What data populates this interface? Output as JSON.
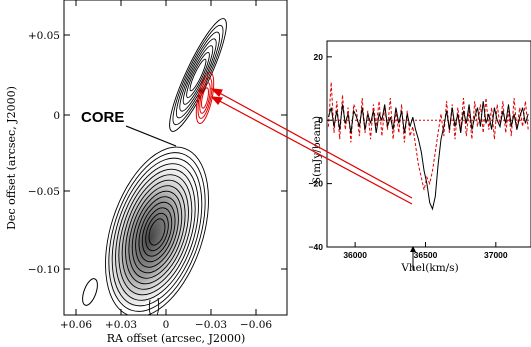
{
  "chart_data": [
    {
      "type": "contour",
      "xlabel": "RA offset (arcsec, J2000)",
      "ylabel": "Dec offset (arcsec, J2000)",
      "x_ticks": [
        "+0.06",
        "+0.03",
        "0",
        "−0.03",
        "−0.06"
      ],
      "y_ticks": [
        "+0.05",
        "0",
        "−0.05",
        "−0.10"
      ],
      "xlim": [
        0.065,
        -0.08
      ],
      "ylim": [
        -0.135,
        0.075
      ],
      "annotation": "CORE",
      "contour_color": "#000000",
      "overlay_contour_color": "#e00000"
    },
    {
      "type": "line",
      "xlabel": "Vhel(km/s)",
      "ylabel": "S(mJy/beam)",
      "x_ticks": [
        "36000",
        "36500",
        "37000"
      ],
      "y_ticks": [
        "20",
        "0",
        "−20",
        "−40"
      ],
      "xlim": [
        35800,
        37250
      ],
      "ylim": [
        -40,
        25
      ],
      "series": [
        {
          "style": "solid",
          "color": "#000000",
          "x": [
            35810,
            35830,
            35850,
            35870,
            35890,
            35910,
            35930,
            35950,
            35970,
            35990,
            36010,
            36030,
            36050,
            36070,
            36090,
            36110,
            36130,
            36150,
            36170,
            36190,
            36210,
            36230,
            36250,
            36270,
            36290,
            36310,
            36330,
            36350,
            36370,
            36390,
            36410,
            36430,
            36450,
            36470,
            36490,
            36510,
            36530,
            36550,
            36570,
            36590,
            36610,
            36630,
            36650,
            36670,
            36690,
            36710,
            36730,
            36750,
            36770,
            36790,
            36810,
            36830,
            36850,
            36870,
            36890,
            36910,
            36930,
            36950,
            36970,
            36990,
            37010,
            37030,
            37050,
            37070,
            37090,
            37110,
            37130,
            37150,
            37170,
            37190,
            37210,
            37230
          ],
          "y": [
            1,
            4,
            -2,
            3,
            -3,
            5,
            -1,
            2,
            -4,
            3,
            1,
            -2,
            4,
            -3,
            2,
            -1,
            3,
            -4,
            2,
            0,
            5,
            -2,
            1,
            -3,
            4,
            -1,
            3,
            -4,
            2,
            -2,
            1,
            -3,
            -6,
            -10,
            -16,
            -20,
            -26,
            -28,
            -24,
            -14,
            -6,
            -2,
            3,
            -3,
            4,
            -2,
            2,
            -4,
            3,
            -1,
            5,
            -3,
            1,
            4,
            -2,
            6,
            -1,
            2,
            -3,
            4,
            0,
            -2,
            3,
            -1,
            5,
            -2,
            2,
            -3,
            1,
            4,
            -1,
            2
          ]
        },
        {
          "style": "dashed",
          "color": "#e00000",
          "x": [
            35810,
            35830,
            35850,
            35870,
            35890,
            35910,
            35930,
            35950,
            35970,
            35990,
            36010,
            36030,
            36050,
            36070,
            36090,
            36110,
            36130,
            36150,
            36170,
            36190,
            36210,
            36230,
            36250,
            36270,
            36290,
            36310,
            36330,
            36350,
            36370,
            36390,
            36410,
            36430,
            36450,
            36470,
            36490,
            36510,
            36530,
            36550,
            36570,
            36590,
            36610,
            36630,
            36650,
            36670,
            36690,
            36710,
            36730,
            36750,
            36770,
            36790,
            36810,
            36830,
            36850,
            36870,
            36890,
            36910,
            36930,
            36950,
            36970,
            36990,
            37010,
            37030,
            37050,
            37070,
            37090,
            37110,
            37130,
            37150,
            37170,
            37190,
            37210,
            37230
          ],
          "y": [
            -2,
            12,
            -4,
            6,
            -6,
            8,
            -3,
            4,
            -7,
            5,
            3,
            -5,
            7,
            -4,
            3,
            -6,
            5,
            -2,
            6,
            -5,
            4,
            -3,
            7,
            -6,
            3,
            -4,
            5,
            -7,
            3,
            -5,
            -2,
            -8,
            -14,
            -18,
            -22,
            -18,
            -20,
            -16,
            -10,
            -4,
            2,
            -5,
            6,
            -4,
            5,
            -6,
            4,
            -3,
            7,
            -5,
            3,
            -6,
            6,
            -2,
            5,
            -4,
            7,
            -3,
            4,
            -6,
            5,
            -2,
            6,
            -4,
            3,
            -5,
            7,
            -3,
            4,
            -2,
            6,
            -3
          ]
        }
      ],
      "reference_line": {
        "y": 0,
        "style": "dotted",
        "color": "#e00000"
      },
      "marker": "arrow at ≈36540 km/s"
    }
  ]
}
